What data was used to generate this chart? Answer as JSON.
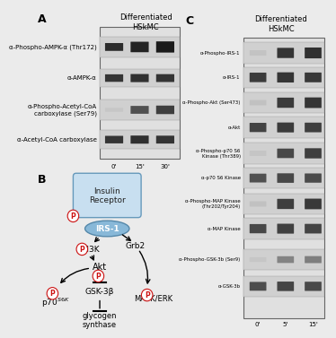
{
  "background_color": "#ebebeb",
  "title_text": "Differentiated\nHSkMC",
  "panel_A_labels": [
    "α-Phospho-AMPK-α (Thr172)",
    "α-AMPK-α",
    "α-Phospho-Acetyl-CoA\ncarboxylase (Ser79)",
    "α-Acetyl-CoA carboxylase"
  ],
  "panel_A_timepoints": [
    "0'",
    "15'",
    "30'"
  ],
  "panel_C_labels": [
    "α-Phospho-IRS-1",
    "α-IRS-1",
    "α-Phospho-Akt (Ser473)",
    "α-Akt",
    "α-Phospho-p70 S6\nKinase (Thr389)",
    "α-p70 S6 Kinase",
    "α-Phospho-MAP Kinase\n(Thr202/Tyr204)",
    "α-MAP Kinase",
    "α-Phospho-GSK-3b (Ser9)",
    "α-GSK-3b"
  ],
  "panel_C_timepoints": [
    "0'",
    "5'",
    "15'"
  ],
  "label_font_size": 5.0,
  "title_font_size": 6.0,
  "panel_label_size": 9,
  "blot_bg": "#d0d0d0",
  "band_color": "#1a1a1a",
  "border_color": "#888888"
}
